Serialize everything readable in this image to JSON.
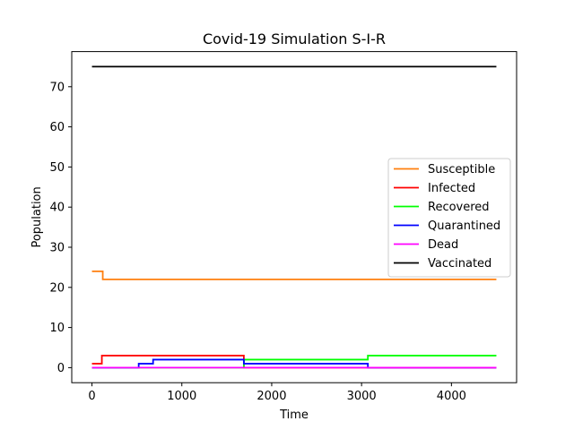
{
  "chart_data": {
    "type": "line",
    "title": "Covid-19 Simulation S-I-R",
    "xlabel": "Time",
    "ylabel": "Population",
    "xlim": [
      -225,
      4725
    ],
    "ylim": [
      -3.75,
      78.75
    ],
    "xticks": [
      0,
      1000,
      2000,
      3000,
      4000
    ],
    "yticks": [
      0,
      10,
      20,
      30,
      40,
      50,
      60,
      70
    ],
    "legend_position": "center-right",
    "grid": false,
    "series": [
      {
        "name": "Susceptible",
        "color": "#ff7f0e",
        "step": true,
        "x": [
          0,
          120,
          4500
        ],
        "y": [
          24,
          22,
          22
        ]
      },
      {
        "name": "Infected",
        "color": "#ff0000",
        "step": true,
        "x": [
          0,
          110,
          1690,
          4500
        ],
        "y": [
          1,
          3,
          0,
          0
        ]
      },
      {
        "name": "Recovered",
        "color": "#00ff00",
        "step": true,
        "x": [
          0,
          1690,
          3070,
          4500
        ],
        "y": [
          0,
          2,
          3,
          3
        ]
      },
      {
        "name": "Quarantined",
        "color": "#0000ff",
        "step": true,
        "x": [
          0,
          520,
          680,
          1690,
          3070,
          4500
        ],
        "y": [
          0,
          1,
          2,
          1,
          0,
          0
        ]
      },
      {
        "name": "Dead",
        "color": "#ff00ff",
        "step": true,
        "x": [
          0,
          4500
        ],
        "y": [
          0,
          0
        ]
      },
      {
        "name": "Vaccinated",
        "color": "#000000",
        "step": true,
        "x": [
          0,
          4500
        ],
        "y": [
          75,
          75
        ]
      }
    ]
  }
}
